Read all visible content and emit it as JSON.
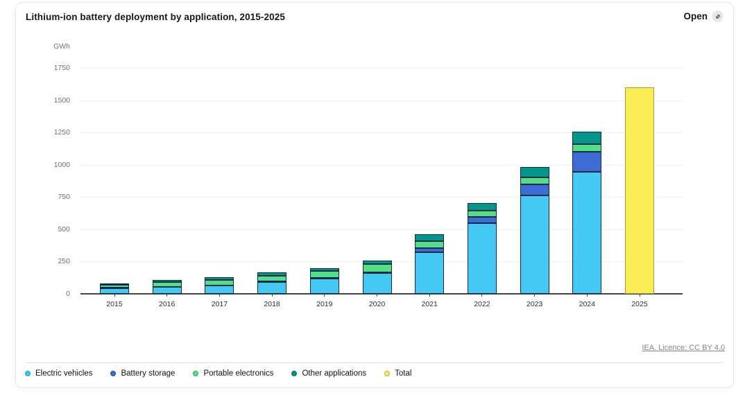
{
  "header": {
    "open_label": "Open"
  },
  "chart_data": {
    "type": "bar",
    "stacked": true,
    "title": "Lithium-ion battery deployment by application, 2015-2025",
    "unit_label": "GWh",
    "categories": [
      "2015",
      "2016",
      "2017",
      "2018",
      "2019",
      "2020",
      "2021",
      "2022",
      "2023",
      "2024",
      "2025"
    ],
    "series": [
      {
        "name": "Electric vehicles",
        "color": "#45C8F3",
        "ring": "#1d9fce",
        "border": "#0e2a47",
        "values": [
          45,
          55,
          62,
          92,
          118,
          160,
          320,
          550,
          760,
          945,
          0
        ]
      },
      {
        "name": "Battery storage",
        "color": "#3D6DD3",
        "ring": "#27479c",
        "border": "#0e2a47",
        "values": [
          1,
          1,
          2,
          6,
          6,
          8,
          37,
          48,
          90,
          155,
          0
        ]
      },
      {
        "name": "Portable electronics",
        "color": "#54DE85",
        "ring": "#27ab58",
        "border": "#0e2a47",
        "values": [
          22,
          33,
          46,
          42,
          52,
          62,
          49,
          48,
          53,
          60,
          0
        ]
      },
      {
        "name": "Other applications",
        "color": "#00968B",
        "ring": "#00655c",
        "border": "#0e2a47",
        "values": [
          15,
          16,
          18,
          27,
          22,
          27,
          54,
          60,
          82,
          97,
          0
        ]
      },
      {
        "name": "Total",
        "color": "#FAEC55",
        "ring": "#bfae35",
        "border": "#a89b3e",
        "values": [
          0,
          0,
          0,
          0,
          0,
          0,
          0,
          0,
          0,
          0,
          1600
        ]
      }
    ],
    "ylim": [
      0,
      1750
    ],
    "ytick_step": 250,
    "grid": true,
    "legend_position": "bottom"
  },
  "footer": {
    "attribution": "IEA. Licence: CC BY 4.0"
  }
}
